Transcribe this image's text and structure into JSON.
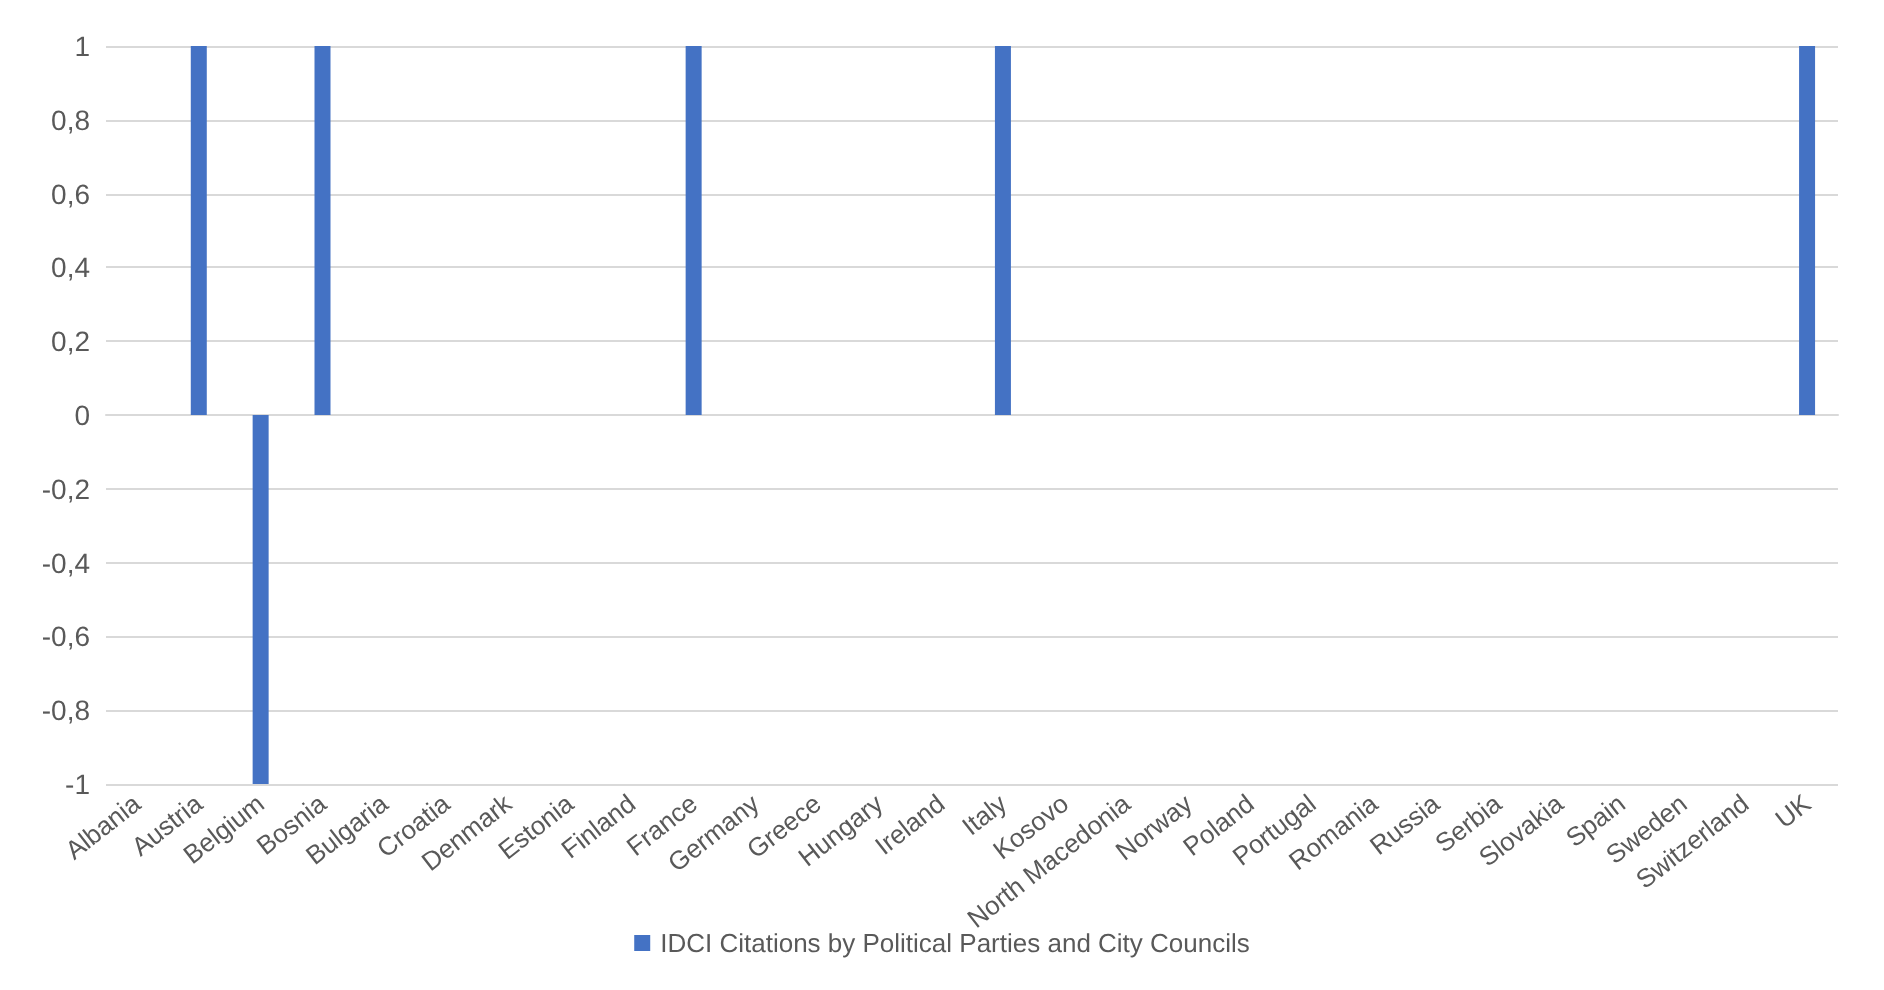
{
  "chart_data": {
    "type": "bar",
    "categories": [
      "Albania",
      "Austria",
      "Belgium",
      "Bosnia",
      "Bulgaria",
      "Croatia",
      "Denmark",
      "Estonia",
      "Finland",
      "France",
      "Germany",
      "Greece",
      "Hungary",
      "Ireland",
      "Italy",
      "Kosovo",
      "North Macedonia",
      "Norway",
      "Poland",
      "Portugal",
      "Romania",
      "Russia",
      "Serbia",
      "Slovakia",
      "Spain",
      "Sweden",
      "Switzerland",
      "UK"
    ],
    "series": [
      {
        "name": "IDCI Citations by Political Parties and City Councils",
        "color": "#4472c4",
        "values": [
          0,
          1,
          -1,
          1,
          0,
          0,
          0,
          0,
          0,
          1,
          0,
          0,
          0,
          0,
          1,
          0,
          0,
          0,
          0,
          0,
          0,
          0,
          0,
          0,
          0,
          0,
          0,
          1
        ]
      }
    ],
    "ylim": [
      -1,
      1
    ],
    "yticks": [
      -1,
      {
        "value": -0.8,
        "label": "-0,8"
      },
      {
        "value": -0.6,
        "label": "-0,6"
      },
      {
        "value": -0.4,
        "label": "-0,4"
      },
      {
        "value": -0.2,
        "label": "-0,2"
      },
      0,
      {
        "value": 0.2,
        "label": "0,2"
      },
      {
        "value": 0.4,
        "label": "0,4"
      },
      {
        "value": 0.6,
        "label": "0,6"
      },
      {
        "value": 0.8,
        "label": "0,8"
      },
      1
    ],
    "grid": "y",
    "legend": "bottom"
  }
}
